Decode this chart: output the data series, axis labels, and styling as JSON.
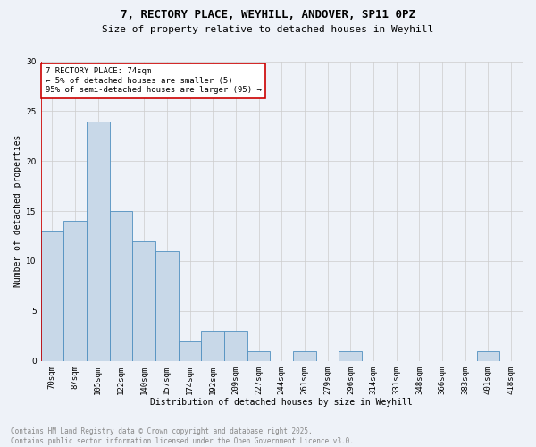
{
  "title_line1": "7, RECTORY PLACE, WEYHILL, ANDOVER, SP11 0PZ",
  "title_line2": "Size of property relative to detached houses in Weyhill",
  "xlabel": "Distribution of detached houses by size in Weyhill",
  "ylabel": "Number of detached properties",
  "bin_labels": [
    "70sqm",
    "87sqm",
    "105sqm",
    "122sqm",
    "140sqm",
    "157sqm",
    "174sqm",
    "192sqm",
    "209sqm",
    "227sqm",
    "244sqm",
    "261sqm",
    "279sqm",
    "296sqm",
    "314sqm",
    "331sqm",
    "348sqm",
    "366sqm",
    "383sqm",
    "401sqm",
    "418sqm"
  ],
  "bar_values": [
    13,
    14,
    24,
    15,
    12,
    11,
    2,
    3,
    3,
    1,
    0,
    1,
    0,
    1,
    0,
    0,
    0,
    0,
    0,
    1,
    0
  ],
  "bar_color": "#c8d8e8",
  "bar_edge_color": "#5090c0",
  "grid_color": "#cccccc",
  "background_color": "#eef2f8",
  "annotation_text": "7 RECTORY PLACE: 74sqm\n← 5% of detached houses are smaller (5)\n95% of semi-detached houses are larger (95) →",
  "annotation_box_color": "#ffffff",
  "annotation_box_edge": "#cc0000",
  "ylim": [
    0,
    30
  ],
  "yticks": [
    0,
    5,
    10,
    15,
    20,
    25,
    30
  ],
  "footer_text": "Contains HM Land Registry data © Crown copyright and database right 2025.\nContains public sector information licensed under the Open Government Licence v3.0.",
  "footer_color": "#888888",
  "title_fontsize": 9,
  "subtitle_fontsize": 8,
  "axis_label_fontsize": 7,
  "tick_fontsize": 6.5,
  "annotation_fontsize": 6.5,
  "footer_fontsize": 5.5
}
